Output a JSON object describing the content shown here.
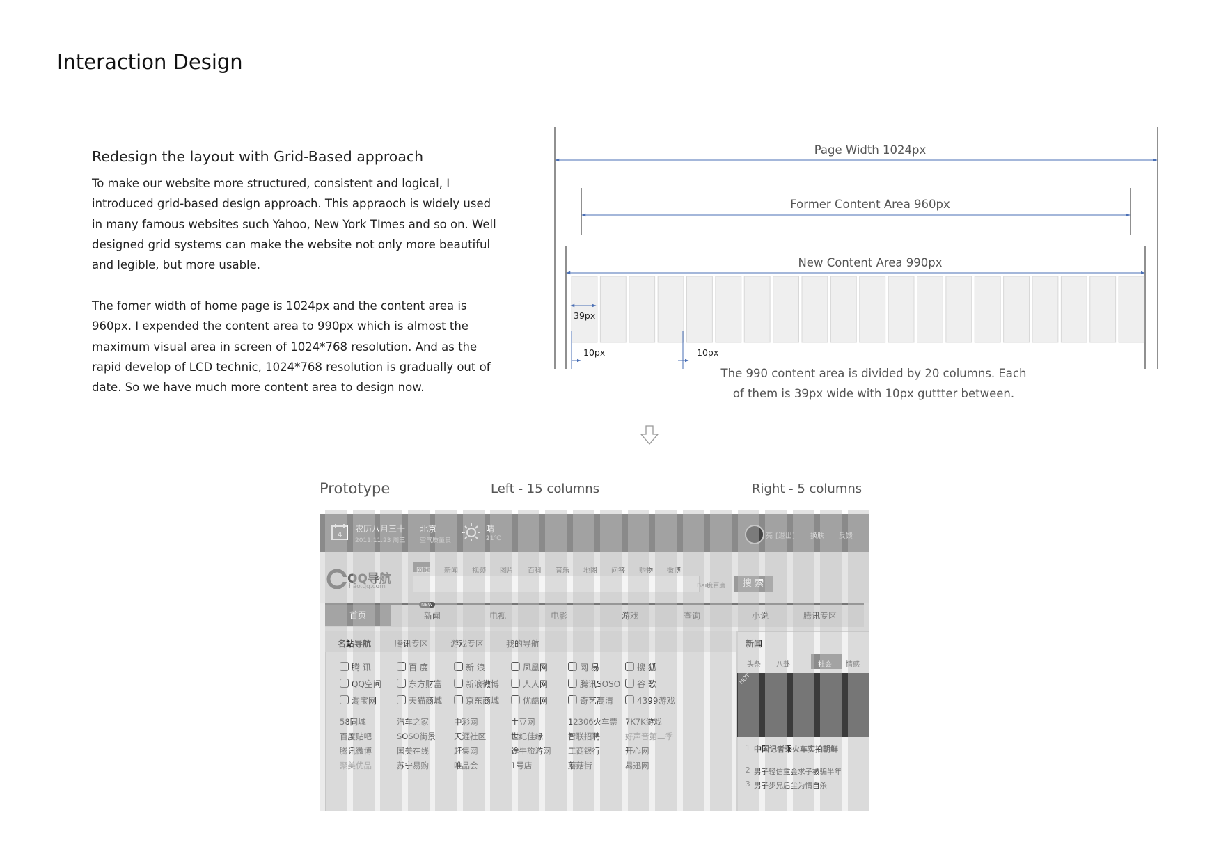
{
  "page": {
    "title": "Interaction Design"
  },
  "intro": {
    "heading": "Redesign the layout with Grid-Based approach",
    "para1": "To make our website more structured, consistent and logical, I introduced grid-based design approach. This appraoch is widely used in many famous websites such Yahoo, New York TImes and so on. Well designed grid systems can make the website not only more beautiful and legible, but more usable.",
    "para2": "The fomer width of home page is 1024px and the content area is 960px. I expended the content area to 990px which is almost the maximum visual area in screen of 1024*768 resolution. And as the rapid develop of LCD technic, 1024*768 resolution is gradually out of date. So we have much more content area to design now."
  },
  "grid_diagram": {
    "page_width_label": "Page Width  1024px",
    "former_label": "Former Content Area 960px",
    "new_label": "New Content Area 990px",
    "column_label": "39px",
    "gutter_label_1": "10px",
    "gutter_label_2": "10px",
    "columns": 20,
    "caption_line1": "The 990 content area is divided by 20 columns. Each",
    "caption_line2": "of them is 39px wide with 10px guttter between."
  },
  "prototype": {
    "title": "Prototype",
    "left_label": "Left - 15 columns",
    "right_label": "Right - 5 columns",
    "topbar": {
      "date_big": "农历八月三十",
      "date_small": "2011.11.23 周三",
      "city": "北京",
      "air": "空气质量良",
      "weather": "晴",
      "temp": "21℃",
      "user": "亮",
      "logout": "[退出]",
      "skin": "换肤",
      "feedback": "反馈"
    },
    "logo": "QQ导航",
    "logo_url": "hao.qq.com",
    "search_tabs": [
      "网页",
      "新闻",
      "视频",
      "图片",
      "百科",
      "音乐",
      "地图",
      "问答",
      "购物",
      "微博"
    ],
    "search_brand": "Bai度百度",
    "search_button": "搜 索",
    "nav": [
      "首页",
      "新闻",
      "电视",
      "电影",
      "游戏",
      "查询",
      "小说",
      "腾讯专区"
    ],
    "new_badge": "NEW",
    "subtabs": [
      "名站导航",
      "腾讯专区",
      "游戏专区",
      "我的导航"
    ],
    "sites_main": [
      [
        "腾 讯",
        "百 度",
        "新 浪",
        "凤凰网",
        "网 易",
        "搜 狐"
      ],
      [
        "QQ空间",
        "东方财富",
        "新浪微博",
        "人人网",
        "腾讯SOSO",
        "谷 歌"
      ],
      [
        "淘宝网",
        "天猫商城",
        "京东商城",
        "优酷网",
        "奇艺高清",
        "4399游戏"
      ]
    ],
    "sites_more": [
      [
        "58同城",
        "汽车之家",
        "中彩网",
        "土豆网",
        "12306火车票",
        "7K7K游戏"
      ],
      [
        "百度贴吧",
        "SOSO街景",
        "天涯社区",
        "世纪佳缘",
        "智联招聘",
        "好声音第二季"
      ],
      [
        "腾讯微博",
        "国美在线",
        "赶集网",
        "途牛旅游网",
        "工商银行",
        "开心网"
      ],
      [
        "聚美优品",
        "苏宁易购",
        "唯品会",
        "1号店",
        "蘑菇街",
        "易迅网"
      ]
    ],
    "news": {
      "title": "新闻",
      "tabs": [
        "头条",
        "八卦",
        "社会",
        "情感"
      ],
      "hot": "HOT",
      "headline": "中国记者乘火车实拍朝鲜",
      "items": [
        "男子轻信重金求子被骗半年",
        "男子步兄后尘为情自杀"
      ],
      "nums": [
        "1",
        "2",
        "3"
      ]
    }
  }
}
